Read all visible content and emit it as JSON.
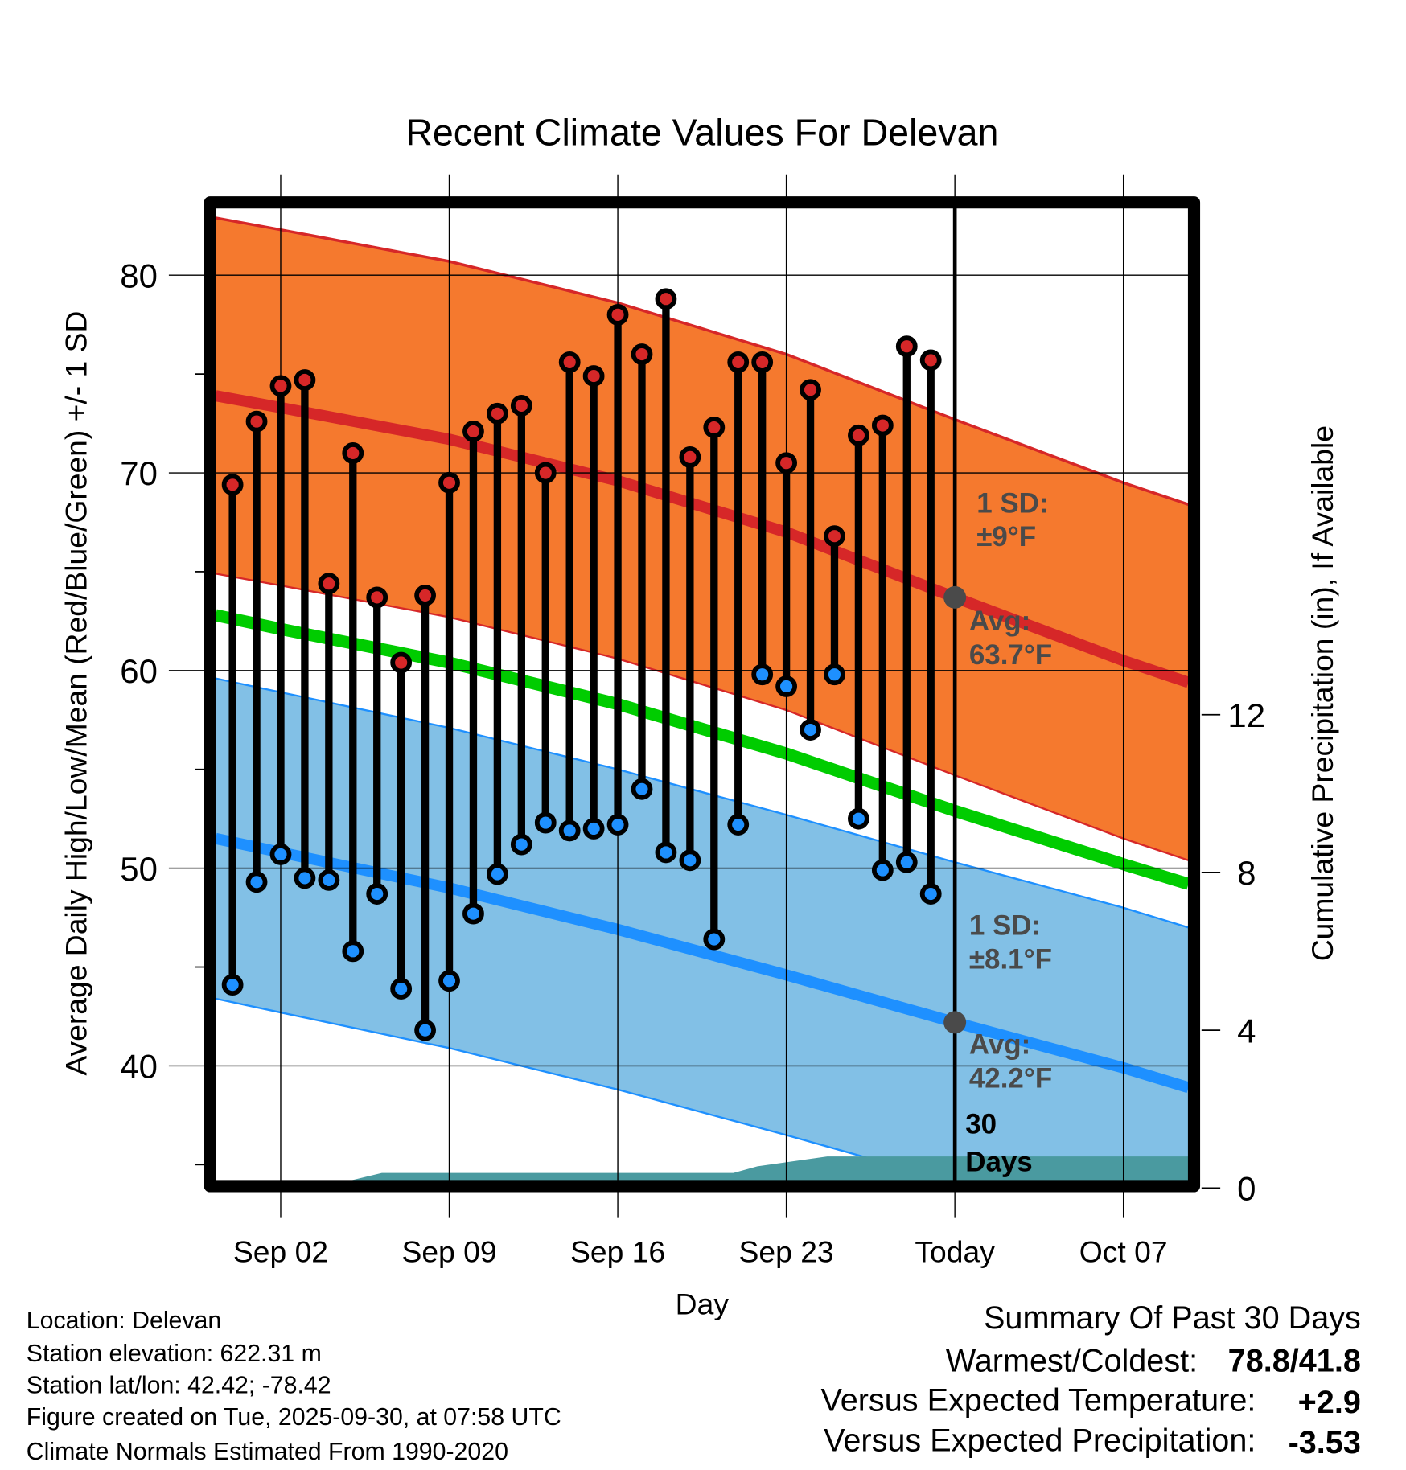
{
  "chart_data": {
    "type": "line",
    "title": "Recent Climate Values For Delevan",
    "xlabel": "Day",
    "ylabel": "Average Daily High/Low/Mean (Red/Blue/Green) +/- 1 SD",
    "y2label": "Cumulative Precipitation (in), If Available",
    "x_unit": "day of September (Sep 30 = Today)",
    "xlim": [
      -0.7,
      39.7
    ],
    "ylim": [
      34.2,
      83.4
    ],
    "y2lim": [
      0,
      30
    ],
    "yticks": [
      40,
      50,
      60,
      70,
      80
    ],
    "y2ticks": [
      0,
      4,
      8,
      12
    ],
    "xticks": [
      {
        "day": 2,
        "label": "Sep 02"
      },
      {
        "day": 9,
        "label": "Sep 09"
      },
      {
        "day": 16,
        "label": "Sep 16"
      },
      {
        "day": 23,
        "label": "Sep 23"
      },
      {
        "day": 30,
        "label": "Today"
      },
      {
        "day": 37,
        "label": "Oct 07"
      }
    ],
    "grid": true,
    "observed": {
      "days": [
        0,
        1,
        2,
        3,
        4,
        5,
        6,
        7,
        8,
        9,
        10,
        11,
        12,
        13,
        14,
        15,
        16,
        17,
        18,
        19,
        20,
        21,
        22,
        23,
        24,
        25,
        26,
        27,
        28,
        29
      ],
      "high": [
        69.4,
        72.6,
        74.4,
        74.7,
        64.4,
        71.0,
        63.7,
        60.4,
        63.8,
        69.5,
        72.1,
        73.0,
        73.4,
        70.0,
        75.6,
        74.9,
        78.0,
        76.0,
        78.8,
        70.8,
        72.3,
        75.6,
        75.6,
        70.5,
        74.2,
        66.8,
        71.9,
        72.4,
        76.4,
        75.7
      ],
      "low": [
        44.1,
        49.3,
        50.7,
        49.5,
        49.4,
        45.8,
        48.7,
        43.9,
        41.8,
        44.3,
        47.7,
        49.7,
        51.2,
        52.3,
        51.9,
        52.0,
        52.2,
        54.0,
        50.8,
        50.4,
        46.4,
        52.2,
        59.8,
        59.2,
        57.0,
        59.8,
        52.5,
        49.9,
        50.3,
        48.7
      ]
    },
    "normals": {
      "days": [
        -0.7,
        2,
        9,
        16,
        23,
        30,
        37,
        39.7
      ],
      "high_avg": [
        73.9,
        73.3,
        71.7,
        69.6,
        67.0,
        63.7,
        60.5,
        59.4
      ],
      "high_sd": 9,
      "low_avg": [
        51.5,
        50.8,
        49.0,
        46.9,
        44.6,
        42.2,
        39.9,
        38.9
      ],
      "low_sd": 8.1,
      "mean": [
        62.8,
        62.1,
        60.4,
        58.3,
        55.8,
        52.9,
        50.2,
        49.2
      ]
    },
    "precip_cumulative": {
      "days": [
        -0.7,
        3.6,
        6.2,
        20.8,
        21.8,
        24.7,
        27.5,
        39.7
      ],
      "values": [
        0,
        0,
        0.38,
        0.38,
        0.55,
        0.8,
        0.8,
        0.8
      ]
    },
    "annotations": {
      "high_sd_label": "1 SD:",
      "high_sd_value": "±9°F",
      "high_avg_label": "Avg:",
      "high_avg_value": "63.7°F",
      "low_sd_label": "1 SD:",
      "low_sd_value": "±8.1°F",
      "low_avg_label": "Avg:",
      "low_avg_value": "42.2°F",
      "window_label_1": "30",
      "window_label_2": "Days"
    },
    "colors": {
      "high": "#d62728",
      "low": "#1e90ff",
      "mean": "#00cc00",
      "high_band": "#f5792e",
      "low_band": "#82c0e6",
      "precip": "#4a9aa0",
      "annotation": "#4a4a4a"
    }
  },
  "footer": {
    "location": "Location: Delevan",
    "elevation": "Station elevation: 622.31 m",
    "latlon": "Station lat/lon: 42.42; -78.42",
    "created": "Figure created on Tue, 2025-09-30, at 07:58 UTC",
    "normals": "Climate Normals Estimated From 1990-2020"
  },
  "summary": {
    "title": "Summary Of Past 30 Days",
    "warm_cold_label": "Warmest/Coldest:",
    "warm_cold_value": "78.8/41.8",
    "temp_label": "Versus Expected Temperature:",
    "temp_value": "+2.9",
    "temp_color": "#d62728",
    "precip_label": "Versus Expected Precipitation:",
    "precip_value": "-3.53",
    "precip_color": "#a0522d"
  }
}
